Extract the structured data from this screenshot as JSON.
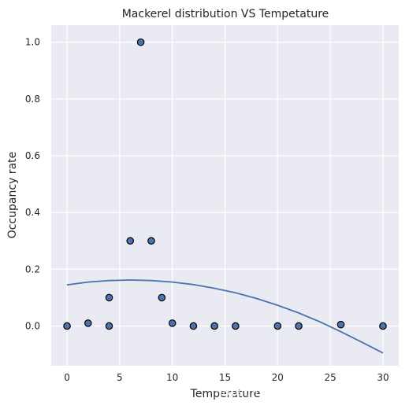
{
  "chart_data": {
    "type": "scatter",
    "title": "Mackerel distribution VS Tempetature",
    "xlabel": "Temperature",
    "ylabel": "Occupancy rate",
    "xlim": [
      -1.5,
      31.5
    ],
    "ylim": [
      -0.14,
      1.06
    ],
    "x_ticks": [
      0,
      5,
      10,
      15,
      20,
      25,
      30
    ],
    "y_ticks": [
      0.0,
      0.2,
      0.4,
      0.6,
      0.8,
      1.0
    ],
    "x_tick_labels": [
      "0",
      "5",
      "10",
      "15",
      "20",
      "25",
      "30"
    ],
    "y_tick_labels": [
      "0.0",
      "0.2",
      "0.4",
      "0.6",
      "0.8",
      "1.0"
    ],
    "grid": true,
    "background": "#eaeaf2",
    "series": [
      {
        "kind": "scatter",
        "color": "#4c72b0",
        "edge_color": "#000000",
        "points": [
          {
            "x": 0,
            "y": 0.0
          },
          {
            "x": 2,
            "y": 0.01
          },
          {
            "x": 4,
            "y": 0.1
          },
          {
            "x": 4,
            "y": 0.0
          },
          {
            "x": 6,
            "y": 0.3
          },
          {
            "x": 7,
            "y": 1.0
          },
          {
            "x": 8,
            "y": 0.3
          },
          {
            "x": 9,
            "y": 0.1
          },
          {
            "x": 10,
            "y": 0.01
          },
          {
            "x": 12,
            "y": 0.0
          },
          {
            "x": 14,
            "y": 0.0
          },
          {
            "x": 16,
            "y": 0.0
          },
          {
            "x": 20,
            "y": 0.0
          },
          {
            "x": 22,
            "y": 0.0
          },
          {
            "x": 26,
            "y": 0.005
          },
          {
            "x": 30,
            "y": 0.0
          }
        ]
      },
      {
        "kind": "line",
        "color": "#4c72b0",
        "points": [
          {
            "x": 0,
            "y": 0.145
          },
          {
            "x": 2,
            "y": 0.155
          },
          {
            "x": 4,
            "y": 0.16
          },
          {
            "x": 6,
            "y": 0.162
          },
          {
            "x": 8,
            "y": 0.16
          },
          {
            "x": 10,
            "y": 0.155
          },
          {
            "x": 12,
            "y": 0.146
          },
          {
            "x": 14,
            "y": 0.133
          },
          {
            "x": 16,
            "y": 0.117
          },
          {
            "x": 18,
            "y": 0.097
          },
          {
            "x": 20,
            "y": 0.073
          },
          {
            "x": 22,
            "y": 0.046
          },
          {
            "x": 24,
            "y": 0.015
          },
          {
            "x": 26,
            "y": -0.02
          },
          {
            "x": 28,
            "y": -0.057
          },
          {
            "x": 30,
            "y": -0.095
          }
        ]
      }
    ]
  },
  "watermark": "https://blog.csdn.net/PRINCE2327"
}
